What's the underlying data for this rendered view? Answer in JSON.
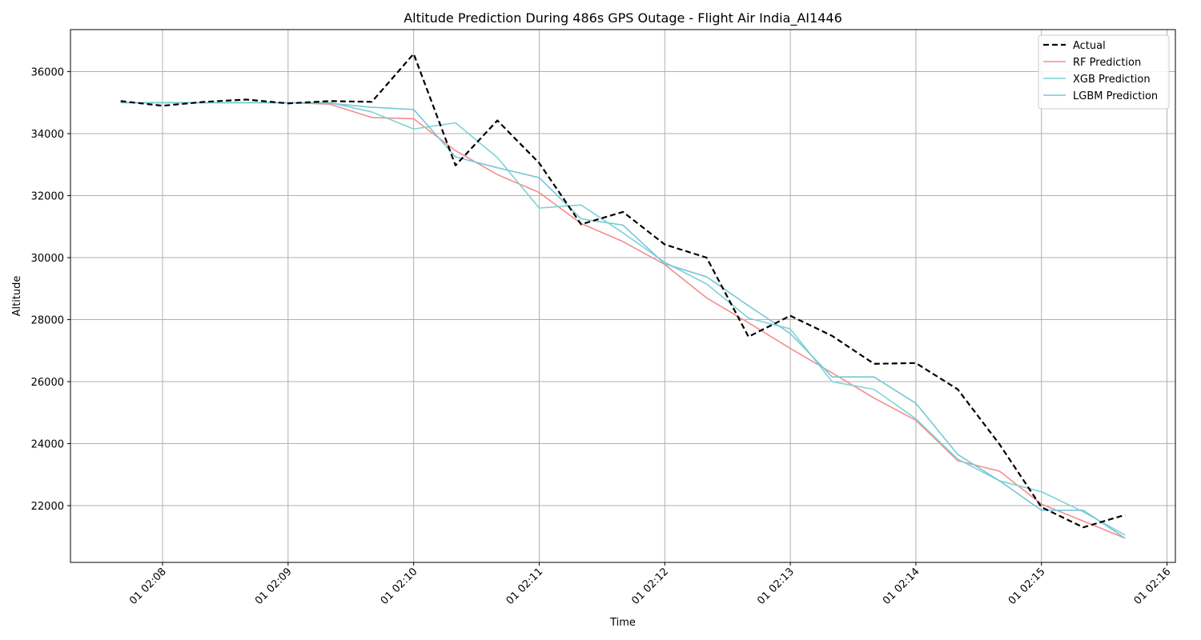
{
  "chart_data": {
    "type": "line",
    "title": "Altitude Prediction During 486s GPS Outage - Flight Air India_AI1446",
    "xlabel": "Time",
    "ylabel": "Altitude",
    "grid": true,
    "legend_position": "top-right",
    "x_axis_type": "time",
    "x_tick_values": [
      "02:08",
      "02:09",
      "02:10",
      "02:11",
      "02:12",
      "02:13",
      "02:14",
      "02:15",
      "02:16"
    ],
    "x_tick_labels": [
      "01 02:08",
      "01 02:09",
      "01 02:10",
      "01 02:11",
      "01 02:12",
      "01 02:13",
      "01 02:14",
      "01 02:15",
      "01 02:16"
    ],
    "y_ticks": [
      22000,
      24000,
      26000,
      28000,
      30000,
      32000,
      34000,
      36000
    ],
    "x": [
      "02:07:40",
      "02:08:00",
      "02:08:20",
      "02:08:40",
      "02:09:00",
      "02:09:20",
      "02:09:40",
      "02:10:00",
      "02:10:20",
      "02:10:40",
      "02:11:00",
      "02:11:20",
      "02:11:40",
      "02:12:00",
      "02:12:20",
      "02:12:40",
      "02:13:00",
      "02:13:20",
      "02:13:40",
      "02:14:00",
      "02:14:20",
      "02:14:40",
      "02:15:00",
      "02:15:20",
      "02:15:40"
    ],
    "series": [
      {
        "name": "Actual",
        "color": "#000000",
        "dashed": true,
        "values": [
          35050,
          34900,
          35025,
          35100,
          34975,
          35050,
          35025,
          36575,
          32975,
          34425,
          33050,
          31075,
          31475,
          30425,
          30000,
          27450,
          28125,
          27475,
          26575,
          26600,
          25750,
          23975,
          21950,
          21300,
          21700
        ]
      },
      {
        "name": "RF Prediction",
        "color": "#f28e8e",
        "dashed": false,
        "values": [
          35000,
          35000,
          35000,
          35000,
          35000,
          34950,
          34520,
          34480,
          33450,
          32680,
          32100,
          31100,
          30520,
          29780,
          28700,
          27900,
          27070,
          26280,
          25470,
          24750,
          23450,
          23110,
          22050,
          21500,
          20950
        ]
      },
      {
        "name": "XGB Prediction",
        "color": "#7ed3d6",
        "dashed": false,
        "values": [
          35000,
          35000,
          35000,
          35000,
          35000,
          35000,
          34700,
          34150,
          34350,
          33230,
          31600,
          31700,
          30800,
          29850,
          29150,
          28050,
          27700,
          26000,
          25750,
          24800,
          23500,
          22800,
          22450,
          21800,
          21050
        ]
      },
      {
        "name": "LGBM Prediction",
        "color": "#76c7d8",
        "dashed": false,
        "values": [
          35000,
          35000,
          35000,
          35000,
          35000,
          34980,
          34850,
          34780,
          33250,
          32900,
          32580,
          31250,
          31050,
          29800,
          29380,
          28450,
          27550,
          26150,
          26150,
          25300,
          23650,
          22800,
          21850,
          21850,
          20950
        ]
      }
    ]
  }
}
